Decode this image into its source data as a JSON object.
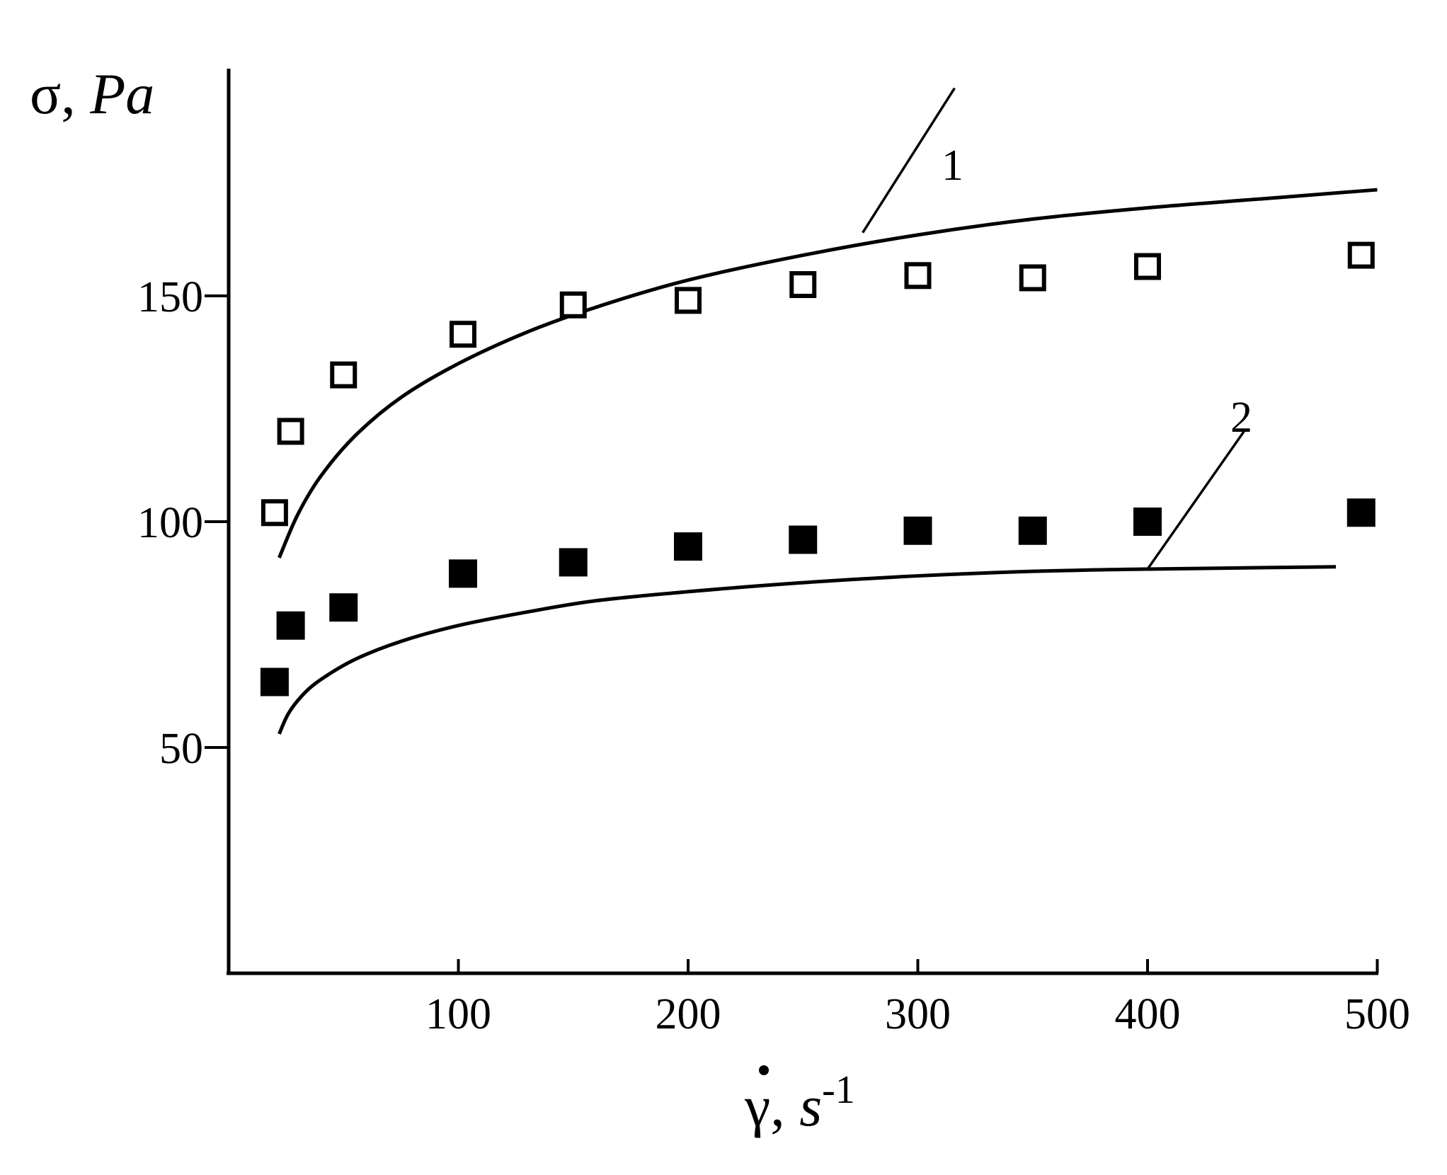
{
  "chart_data": {
    "type": "scatter",
    "title": "",
    "ylabel_symbol": "σ",
    "ylabel_sep": ", ",
    "ylabel_unit": "Pa",
    "xlabel_symbol": "γ",
    "xlabel_sep": ", ",
    "xlabel_unit": "s",
    "xlabel_exponent": "-1",
    "xlim": [
      0,
      500
    ],
    "ylim": [
      0,
      200
    ],
    "xticks": [
      100,
      200,
      300,
      400,
      500
    ],
    "yticks": [
      50,
      100,
      150
    ],
    "grid": false,
    "series": [
      {
        "marker": "open-square",
        "x": [
          20,
          27,
          50,
          102,
          150,
          200,
          250,
          300,
          350,
          400,
          493
        ],
        "y": [
          102,
          120,
          132.5,
          141.5,
          148,
          149,
          152.5,
          154.5,
          154,
          156.5,
          159
        ]
      },
      {
        "marker": "filled-square",
        "x": [
          20,
          27,
          50,
          102,
          150,
          200,
          250,
          300,
          350,
          400,
          493
        ],
        "y": [
          64.5,
          77,
          81,
          88.5,
          91,
          94.5,
          96,
          98,
          98,
          100,
          102
        ]
      }
    ],
    "curves": [
      {
        "label": "1",
        "x": [
          22,
          30,
          40,
          55,
          75,
          100,
          130,
          160,
          200,
          250,
          300,
          350,
          400,
          450,
          500
        ],
        "y": [
          92,
          101.5,
          110,
          119,
          127.5,
          135,
          142,
          147.5,
          153.5,
          159,
          163.5,
          167,
          169.5,
          171.5,
          173.5
        ]
      },
      {
        "label": "2",
        "x": [
          22,
          26,
          32,
          40,
          55,
          75,
          100,
          130,
          160,
          200,
          250,
          300,
          350,
          400,
          482
        ],
        "y": [
          53,
          57.5,
          61.5,
          65,
          69.5,
          73.5,
          77,
          80,
          82.5,
          84.5,
          86.5,
          88,
          89,
          89.5,
          90
        ]
      }
    ]
  }
}
